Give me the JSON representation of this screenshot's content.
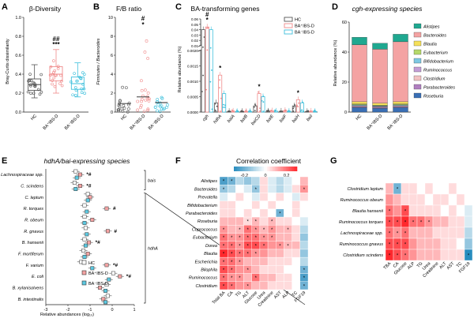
{
  "colors": {
    "hc": "#555555",
    "bap": "#f08a8a",
    "bam": "#3fc0dc",
    "bap_fill": "#f4a3a3",
    "bam_fill": "#5cc8e0",
    "neg": "#1f7fa8",
    "pos": "#e2303a"
  },
  "chart_data": [
    {
      "panel": "A",
      "type": "box",
      "title": "β-Diversity",
      "ylabel": "Bray-Curtis dissimilarity",
      "ylim": [
        0,
        1.0
      ],
      "yticks": [
        "0.0",
        "0.2",
        "0.4",
        "0.6",
        "0.8",
        "1.0"
      ],
      "categories": [
        "HC",
        "BA+IBS-D",
        "BA−IBS-D"
      ],
      "categories_display": [
        "HC",
        "BA⁺IBS-D",
        "BA⁻IBS-D"
      ],
      "boxes": [
        {
          "min": 0.15,
          "q1": 0.23,
          "median": 0.29,
          "q3": 0.35,
          "max": 0.5
        },
        {
          "min": 0.2,
          "q1": 0.33,
          "median": 0.4,
          "q3": 0.48,
          "max": 0.66
        },
        {
          "min": 0.16,
          "q1": 0.24,
          "median": 0.3,
          "q3": 0.37,
          "max": 0.52
        }
      ],
      "sig": [
        "",
        "##\n***",
        ""
      ]
    },
    {
      "panel": "B",
      "type": "scatter",
      "title": "F/B ratio",
      "ylabel": "Firmicutes / Bacteroides",
      "ylim": [
        0,
        10
      ],
      "yticks": [
        "0",
        "2",
        "4",
        "6",
        "8",
        "10"
      ],
      "categories": [
        "HC",
        "BA+IBS-D",
        "BA−IBS-D"
      ],
      "categories_display": [
        "HC",
        "BA⁺IBS-D",
        "BA⁻IBS-D"
      ],
      "means": [
        0.9,
        1.6,
        1.0
      ],
      "sig": [
        "",
        "#\n*",
        ""
      ]
    },
    {
      "panel": "C",
      "type": "bar",
      "title": "BA-transforming genes",
      "ylabel": "Relative abundance (%)",
      "categories": [
        "cgh",
        "hdhA",
        "baiA",
        "baiB",
        "baiCD",
        "baiE",
        "baiF",
        "baiH",
        "baiI"
      ],
      "yticks_low": [
        "0.0000",
        "0.0005",
        "0.0010",
        "0.0015",
        "0.0020"
      ],
      "yticks_high": [
        "0.01",
        "0.02",
        "0.03",
        "0.04",
        "0.05",
        "0.06"
      ],
      "series": [
        {
          "name": "HC",
          "values": [
            0.04,
            0.0003,
            2e-05,
            2e-05,
            0.0002,
            3e-05,
            3e-05,
            0.0002,
            2e-05
          ]
        },
        {
          "name": "BA+IBS-D",
          "values": [
            0.045,
            0.0012,
            3e-05,
            2e-05,
            0.0006,
            4e-05,
            5e-05,
            0.0004,
            3e-05
          ]
        },
        {
          "name": "BA−IBS-D",
          "values": [
            0.04,
            0.0006,
            2e-05,
            2e-05,
            0.0005,
            3e-05,
            3e-05,
            0.0003,
            2e-05
          ]
        }
      ],
      "legend": [
        "HC",
        "BA⁺IBS-D",
        "BA⁻IBS-D"
      ],
      "sig": [
        "#\n*",
        "*",
        "",
        "",
        "*",
        "",
        "",
        "*",
        ""
      ]
    },
    {
      "panel": "D",
      "type": "stacked-bar",
      "title": "cgh-expressing species",
      "ylabel": "Relative abundance (%)",
      "ylim": [
        0,
        60
      ],
      "yticks": [
        "0",
        "20",
        "40",
        "60"
      ],
      "categories": [
        "HC",
        "BA+IBS-D",
        "BA−IBS-D"
      ],
      "categories_display": [
        "HC",
        "BA⁺IBS-D",
        "BA⁻IBS-D"
      ],
      "series": [
        {
          "name": "Roseburia",
          "color": "#3a6fb5",
          "values": [
            3,
            2.5,
            3
          ]
        },
        {
          "name": "Parabacteroides",
          "color": "#b07fc0",
          "values": [
            0.6,
            0.5,
            0.6
          ]
        },
        {
          "name": "Clostridium",
          "color": "#f2c2c2",
          "values": [
            0.4,
            0.4,
            0.4
          ]
        },
        {
          "name": "Ruminococcus",
          "color": "#c39dd6",
          "values": [
            0.4,
            0.4,
            0.4
          ]
        },
        {
          "name": "Bifidobacterium",
          "color": "#7ec8e3",
          "values": [
            0.5,
            0.4,
            0.5
          ]
        },
        {
          "name": "Eubacterium",
          "color": "#b5d96a",
          "values": [
            0.5,
            0.4,
            0.5
          ]
        },
        {
          "name": "Blautia",
          "color": "#f5e05a",
          "values": [
            1.5,
            1.3,
            1.5
          ]
        },
        {
          "name": "Bacteroides",
          "color": "#f4a3a3",
          "values": [
            38,
            36,
            40
          ]
        },
        {
          "name": "Alistipes",
          "color": "#1fa890",
          "values": [
            5,
            4,
            5
          ]
        }
      ]
    },
    {
      "panel": "E",
      "type": "dot-error",
      "title": "hdhA/bai-expressing species",
      "xlabel": "Relative abundances (log₁₀)",
      "xlim": [
        -3,
        1
      ],
      "xticks": [
        "-3",
        "-2",
        "-1",
        "0",
        "1"
      ],
      "categories": [
        "Lachnospiraceae spp.",
        "C. scindens",
        "C. leptum",
        "R. torques",
        "R. obeum",
        "R. gnavus",
        "B. hansenii",
        "F. mortiferum",
        "F. varium",
        "E. coli",
        "B. xylanisolvens",
        "B. intestinalis"
      ],
      "series": [
        {
          "name": "HC",
          "values": [
            -1.65,
            -1.7,
            -1.1,
            -1.25,
            -1.25,
            -1.2,
            -1.25,
            -1.3,
            -1.4,
            0.05,
            -0.25,
            -0.2
          ]
        },
        {
          "name": "BA+IBS-D",
          "values": [
            -1.45,
            -1.45,
            -1.0,
            -0.25,
            -0.9,
            -0.2,
            -1.05,
            -1.1,
            -0.25,
            0.35,
            -0.55,
            -0.4
          ]
        },
        {
          "name": "BA−IBS-D",
          "values": [
            -1.6,
            -1.65,
            -1.1,
            -1.15,
            -1.25,
            -1.15,
            -1.2,
            -1.25,
            -0.9,
            -0.15,
            -0.3,
            -0.3
          ]
        }
      ],
      "legend": [
        "HC",
        "BA⁺IBS-D",
        "BA⁻IBS-D"
      ],
      "sig": [
        "*#",
        "*#",
        "",
        "#",
        "",
        "#",
        "*#",
        "",
        "*#",
        "*#",
        "",
        ""
      ],
      "groups": [
        "bais",
        "hdhA"
      ]
    },
    {
      "panel": "F",
      "type": "heatmap",
      "title": "Correlation coefficient",
      "colorbar_ticks": [
        "-0.2",
        "0",
        "0.2"
      ],
      "clim": [
        -0.3,
        0.3
      ],
      "rows": [
        "Alistipes",
        "Bacteroides",
        "Prevotella",
        "Bifidobacterium",
        "Parabacteroides",
        "Roseburia",
        "Coprococcus",
        "Eubacterium",
        "Dorea",
        "Blautia",
        "Escherichia",
        "Bilophila",
        "Ruminococcus",
        "Clostridium"
      ],
      "cols": [
        "Total BA",
        "CA",
        "TG",
        "ALT",
        "Glucose",
        "Urea",
        "Creatinine",
        "AST",
        "ALP",
        "TC",
        "FGF19"
      ],
      "values": [
        [
          -0.25,
          -0.2,
          -0.1,
          -0.15,
          -0.1,
          0.05,
          -0.05,
          -0.1,
          -0.05,
          0.0,
          0.1
        ],
        [
          -0.15,
          -0.1,
          0.0,
          -0.05,
          -0.15,
          0.05,
          -0.05,
          -0.1,
          -0.05,
          0.05,
          0.15
        ],
        [
          -0.05,
          0.0,
          0.05,
          0.0,
          -0.05,
          0.05,
          0.0,
          0.05,
          0.0,
          -0.05,
          0.05
        ],
        [
          0.05,
          0.05,
          0.0,
          0.0,
          0.05,
          0.0,
          0.05,
          0.0,
          0.0,
          0.05,
          0.0
        ],
        [
          0.05,
          0.05,
          0.0,
          0.05,
          0.0,
          0.05,
          0.0,
          -0.2,
          0.0,
          0.05,
          0.0
        ],
        [
          0.1,
          0.1,
          0.1,
          0.05,
          0.1,
          0.05,
          0.1,
          0.05,
          0.05,
          0.0,
          -0.05
        ],
        [
          0.15,
          0.1,
          0.1,
          0.2,
          0.15,
          0.1,
          0.15,
          0.1,
          0.1,
          0.05,
          -0.1
        ],
        [
          0.2,
          0.15,
          0.15,
          0.2,
          0.2,
          0.15,
          0.15,
          0.1,
          0.1,
          0.05,
          -0.15
        ],
        [
          0.2,
          0.2,
          0.15,
          0.25,
          0.25,
          0.2,
          0.15,
          0.15,
          0.1,
          0.1,
          -0.1
        ],
        [
          0.3,
          0.25,
          0.2,
          0.2,
          0.15,
          0.15,
          0.1,
          0.1,
          0.05,
          0.05,
          -0.15
        ],
        [
          0.2,
          0.2,
          0.15,
          0.1,
          0.1,
          0.1,
          0.05,
          0.05,
          0.05,
          0.0,
          -0.1
        ],
        [
          0.25,
          0.2,
          0.15,
          0.15,
          0.1,
          0.05,
          0.05,
          0.05,
          0.0,
          0.0,
          -0.2
        ],
        [
          0.2,
          0.15,
          0.15,
          0.1,
          0.2,
          0.1,
          0.1,
          0.05,
          0.05,
          0.0,
          -0.25
        ],
        [
          0.25,
          0.2,
          0.15,
          0.15,
          0.1,
          0.1,
          0.05,
          0.05,
          0.05,
          0.0,
          -0.2
        ]
      ],
      "stars": [
        [
          1,
          1,
          0,
          0,
          0,
          0,
          0,
          0,
          0,
          0,
          0
        ],
        [
          1,
          0,
          0,
          0,
          1,
          0,
          0,
          0,
          0,
          0,
          1
        ],
        [
          0,
          0,
          0,
          0,
          0,
          0,
          0,
          0,
          0,
          0,
          0
        ],
        [
          0,
          0,
          0,
          0,
          0,
          0,
          0,
          0,
          0,
          0,
          0
        ],
        [
          0,
          0,
          0,
          0,
          0,
          0,
          0,
          1,
          0,
          0,
          0
        ],
        [
          0,
          0,
          0,
          1,
          1,
          0,
          1,
          0,
          0,
          0,
          0
        ],
        [
          1,
          0,
          1,
          1,
          1,
          1,
          1,
          0,
          1,
          0,
          0
        ],
        [
          1,
          1,
          1,
          1,
          1,
          1,
          1,
          0,
          0,
          0,
          0
        ],
        [
          1,
          1,
          1,
          1,
          1,
          1,
          0,
          1,
          1,
          0,
          0
        ],
        [
          1,
          1,
          1,
          1,
          1,
          0,
          0,
          0,
          0,
          0,
          0
        ],
        [
          1,
          1,
          1,
          0,
          0,
          0,
          0,
          0,
          0,
          0,
          0
        ],
        [
          1,
          1,
          0,
          1,
          0,
          0,
          0,
          0,
          0,
          0,
          1
        ],
        [
          1,
          1,
          1,
          0,
          1,
          0,
          0,
          0,
          0,
          0,
          1
        ],
        [
          1,
          1,
          0,
          1,
          0,
          0,
          0,
          0,
          0,
          0,
          1
        ]
      ]
    },
    {
      "panel": "G",
      "type": "heatmap",
      "rows": [
        "Clostridium leptum",
        "Ruminococcus obeum",
        "Blautia hansenii",
        "Ruminococcus torques",
        "Lachnospiraceae spp.",
        "Ruminococcus gnavus",
        "Clostridium scindens"
      ],
      "cols": [
        "TBA",
        "CA",
        "Glucose",
        "ALP",
        "TG",
        "Urea",
        "Creatinine",
        "ALT",
        "AST",
        "TC",
        "FGF19"
      ],
      "values": [
        [
          0.1,
          -0.2,
          0.05,
          0.05,
          0.0,
          0.05,
          0.0,
          0.0,
          0.05,
          0.0,
          0.0
        ],
        [
          0.15,
          0.1,
          0.05,
          0.05,
          0.05,
          0.0,
          0.05,
          0.05,
          0.0,
          0.05,
          0.0
        ],
        [
          0.2,
          0.15,
          0.25,
          0.05,
          0.05,
          0.05,
          0.05,
          0.0,
          0.05,
          0.0,
          -0.05
        ],
        [
          0.25,
          0.25,
          0.3,
          0.2,
          0.2,
          0.15,
          0.1,
          0.1,
          0.05,
          0.05,
          -0.05
        ],
        [
          0.2,
          0.15,
          0.2,
          0.1,
          0.1,
          0.1,
          0.05,
          0.05,
          0.05,
          0.05,
          -0.1
        ],
        [
          0.25,
          0.25,
          0.25,
          0.15,
          0.1,
          0.1,
          0.1,
          0.05,
          0.05,
          0.0,
          -0.15
        ],
        [
          0.3,
          0.25,
          0.2,
          0.15,
          0.1,
          0.1,
          0.1,
          0.05,
          0.05,
          0.05,
          -0.3
        ]
      ],
      "stars": [
        [
          0,
          1,
          0,
          0,
          0,
          0,
          0,
          0,
          0,
          0,
          0
        ],
        [
          0,
          0,
          0,
          0,
          0,
          0,
          0,
          0,
          0,
          0,
          0
        ],
        [
          1,
          0,
          1,
          0,
          0,
          0,
          0,
          0,
          0,
          0,
          0
        ],
        [
          1,
          1,
          1,
          1,
          1,
          1,
          0,
          0,
          0,
          0,
          0
        ],
        [
          1,
          1,
          1,
          0,
          0,
          0,
          0,
          0,
          0,
          0,
          0
        ],
        [
          1,
          1,
          1,
          0,
          0,
          0,
          0,
          0,
          0,
          0,
          0
        ],
        [
          1,
          1,
          1,
          0,
          0,
          0,
          0,
          0,
          0,
          0,
          1
        ]
      ]
    }
  ]
}
